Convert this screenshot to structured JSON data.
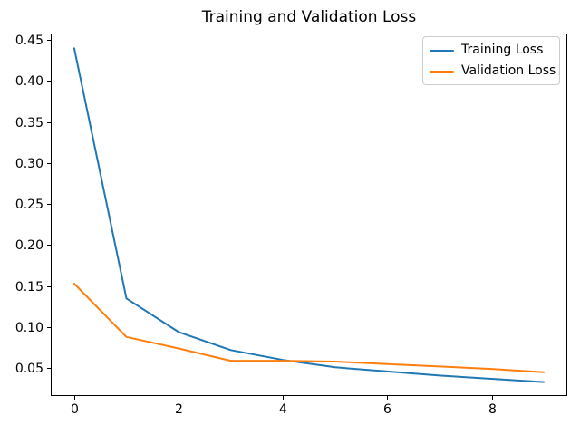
{
  "chart_data": {
    "type": "line",
    "title": "Training and Validation Loss",
    "xlabel": "",
    "ylabel": "",
    "x": [
      0,
      1,
      2,
      3,
      4,
      5,
      6,
      7,
      8,
      9
    ],
    "series": [
      {
        "name": "Training Loss",
        "color": "#1f77b4",
        "values": [
          0.44,
          0.135,
          0.094,
          0.072,
          0.06,
          0.051,
          0.046,
          0.041,
          0.037,
          0.033
        ]
      },
      {
        "name": "Validation Loss",
        "color": "#ff7f0e",
        "values": [
          0.153,
          0.088,
          0.074,
          0.059,
          0.059,
          0.058,
          0.055,
          0.052,
          0.049,
          0.045
        ]
      }
    ],
    "xticks": [
      0,
      2,
      4,
      6,
      8
    ],
    "yticks": [
      0.05,
      0.1,
      0.15,
      0.2,
      0.25,
      0.3,
      0.35,
      0.4,
      0.45
    ],
    "ytick_format_decimals": 2,
    "xlim": [
      -0.45,
      9.45
    ],
    "ylim": [
      0.016,
      0.458
    ],
    "grid": false,
    "legend_position": "upper right",
    "legend": [
      "Training Loss",
      "Validation Loss"
    ],
    "colors": {
      "axes": "#000000",
      "tick_labels": "#000000",
      "legend_border": "#cccccc",
      "background": "#ffffff"
    }
  }
}
